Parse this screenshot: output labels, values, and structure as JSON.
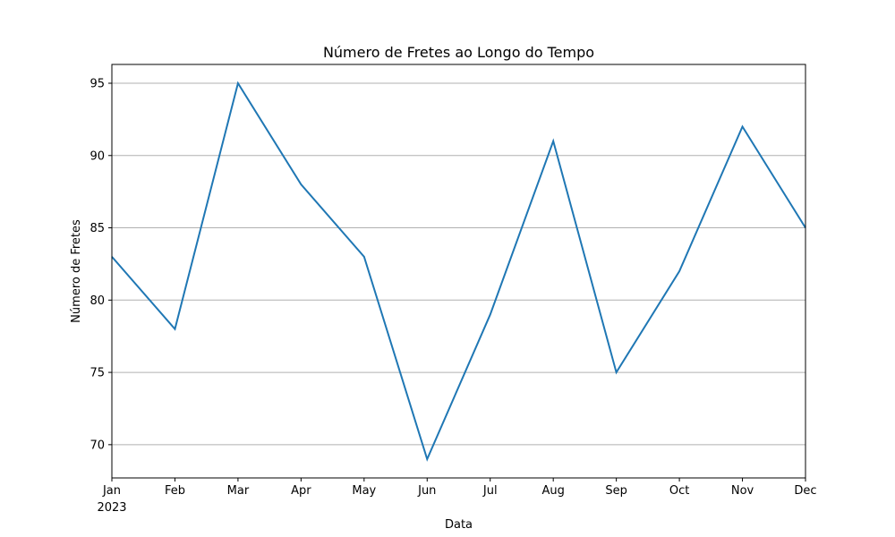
{
  "chart_data": {
    "type": "line",
    "title": "Número de Fretes ao Longo do Tempo",
    "xlabel": "Data",
    "ylabel": "Número de Fretes",
    "x": [
      "2023-01",
      "2023-02",
      "2023-03",
      "2023-04",
      "2023-05",
      "2023-06",
      "2023-07",
      "2023-08",
      "2023-09",
      "2023-10",
      "2023-11",
      "2023-12"
    ],
    "x_tick_labels": [
      "Jan",
      "Feb",
      "Mar",
      "Apr",
      "May",
      "Jun",
      "Jul",
      "Aug",
      "Sep",
      "Oct",
      "Nov",
      "Dec"
    ],
    "x_year_label": "2023",
    "series": [
      {
        "values": [
          83,
          78,
          95,
          88,
          83,
          69,
          79,
          91,
          75,
          82,
          92,
          85
        ],
        "color": "#1f77b4"
      }
    ],
    "yticks": [
      70,
      75,
      80,
      85,
      90,
      95
    ],
    "ylim": [
      67.7,
      96.3
    ],
    "grid": {
      "y": true,
      "x": false
    },
    "grid_color": "#b0b0b0",
    "legend": "none"
  }
}
